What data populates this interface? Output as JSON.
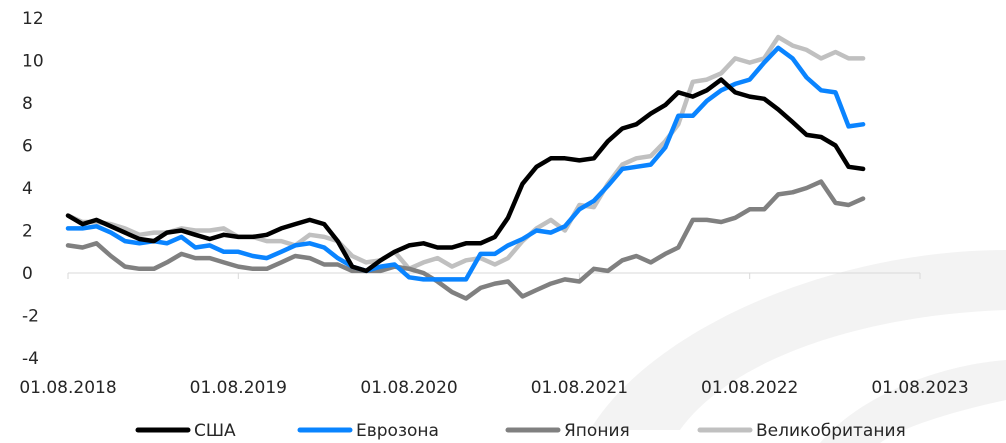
{
  "chart_data": {
    "type": "line",
    "x": [
      "01.08.2018",
      "01.09.2018",
      "01.10.2018",
      "01.11.2018",
      "01.12.2018",
      "01.01.2019",
      "01.02.2019",
      "01.03.2019",
      "01.04.2019",
      "01.05.2019",
      "01.06.2019",
      "01.07.2019",
      "01.08.2019",
      "01.09.2019",
      "01.10.2019",
      "01.11.2019",
      "01.12.2019",
      "01.01.2020",
      "01.02.2020",
      "01.03.2020",
      "01.04.2020",
      "01.05.2020",
      "01.06.2020",
      "01.07.2020",
      "01.08.2020",
      "01.09.2020",
      "01.10.2020",
      "01.11.2020",
      "01.12.2020",
      "01.01.2021",
      "01.02.2021",
      "01.03.2021",
      "01.04.2021",
      "01.05.2021",
      "01.06.2021",
      "01.07.2021",
      "01.08.2021",
      "01.09.2021",
      "01.10.2021",
      "01.11.2021",
      "01.12.2021",
      "01.01.2022",
      "01.02.2022",
      "01.03.2022",
      "01.04.2022",
      "01.05.2022",
      "01.06.2022",
      "01.07.2022",
      "01.08.2022",
      "01.09.2022",
      "01.10.2022",
      "01.11.2022",
      "01.12.2022",
      "01.01.2023",
      "01.02.2023",
      "01.03.2023",
      "01.04.2023"
    ],
    "x_ticks": [
      "01.08.2018",
      "01.08.2019",
      "01.08.2020",
      "01.08.2021",
      "01.08.2022",
      "01.08.2023"
    ],
    "y_ticks": [
      -4,
      -2,
      0,
      2,
      4,
      6,
      8,
      10,
      12
    ],
    "ylim": [
      -4,
      12
    ],
    "grid": false,
    "legend_position": "bottom",
    "series": [
      {
        "name": "США",
        "color": "#000000",
        "values": [
          2.7,
          2.3,
          2.5,
          2.2,
          1.9,
          1.6,
          1.5,
          1.9,
          2.0,
          1.8,
          1.6,
          1.8,
          1.7,
          1.7,
          1.8,
          2.1,
          2.3,
          2.5,
          2.3,
          1.5,
          0.3,
          0.1,
          0.6,
          1.0,
          1.3,
          1.4,
          1.2,
          1.2,
          1.4,
          1.4,
          1.7,
          2.6,
          4.2,
          5.0,
          5.4,
          5.4,
          5.3,
          5.4,
          6.2,
          6.8,
          7.0,
          7.5,
          7.9,
          8.5,
          8.3,
          8.6,
          9.1,
          8.5,
          8.3,
          8.2,
          7.7,
          7.1,
          6.5,
          6.4,
          6.0,
          5.0,
          4.9
        ]
      },
      {
        "name": "Еврозона",
        "color": "#0a84ff",
        "values": [
          2.1,
          2.1,
          2.2,
          1.9,
          1.5,
          1.4,
          1.5,
          1.4,
          1.7,
          1.2,
          1.3,
          1.0,
          1.0,
          0.8,
          0.7,
          1.0,
          1.3,
          1.4,
          1.2,
          0.7,
          0.3,
          0.1,
          0.3,
          0.4,
          -0.2,
          -0.3,
          -0.3,
          -0.3,
          -0.3,
          0.9,
          0.9,
          1.3,
          1.6,
          2.0,
          1.9,
          2.2,
          3.0,
          3.4,
          4.1,
          4.9,
          5.0,
          5.1,
          5.9,
          7.4,
          7.4,
          8.1,
          8.6,
          8.9,
          9.1,
          9.9,
          10.6,
          10.1,
          9.2,
          8.6,
          8.5,
          6.9,
          7.0
        ]
      },
      {
        "name": "Япония",
        "color": "#808080",
        "values": [
          1.3,
          1.2,
          1.4,
          0.8,
          0.3,
          0.2,
          0.2,
          0.5,
          0.9,
          0.7,
          0.7,
          0.5,
          0.3,
          0.2,
          0.2,
          0.5,
          0.8,
          0.7,
          0.4,
          0.4,
          0.1,
          0.1,
          0.1,
          0.3,
          0.2,
          0.0,
          -0.4,
          -0.9,
          -1.2,
          -0.7,
          -0.5,
          -0.4,
          -1.1,
          -0.8,
          -0.5,
          -0.3,
          -0.4,
          0.2,
          0.1,
          0.6,
          0.8,
          0.5,
          0.9,
          1.2,
          2.5,
          2.5,
          2.4,
          2.6,
          3.0,
          3.0,
          3.7,
          3.8,
          4.0,
          4.3,
          3.3,
          3.2,
          3.5
        ]
      },
      {
        "name": "Великобритания",
        "color": "#c0c0c0",
        "values": [
          2.7,
          2.4,
          2.4,
          2.3,
          2.1,
          1.8,
          1.9,
          1.9,
          2.1,
          2.0,
          2.0,
          2.1,
          1.7,
          1.7,
          1.5,
          1.5,
          1.3,
          1.8,
          1.7,
          1.5,
          0.8,
          0.5,
          0.6,
          1.0,
          0.2,
          0.5,
          0.7,
          0.3,
          0.6,
          0.7,
          0.4,
          0.7,
          1.5,
          2.1,
          2.5,
          2.0,
          3.2,
          3.1,
          4.2,
          5.1,
          5.4,
          5.5,
          6.2,
          7.0,
          9.0,
          9.1,
          9.4,
          10.1,
          9.9,
          10.1,
          11.1,
          10.7,
          10.5,
          10.1,
          10.4,
          10.1,
          10.1
        ]
      }
    ]
  }
}
